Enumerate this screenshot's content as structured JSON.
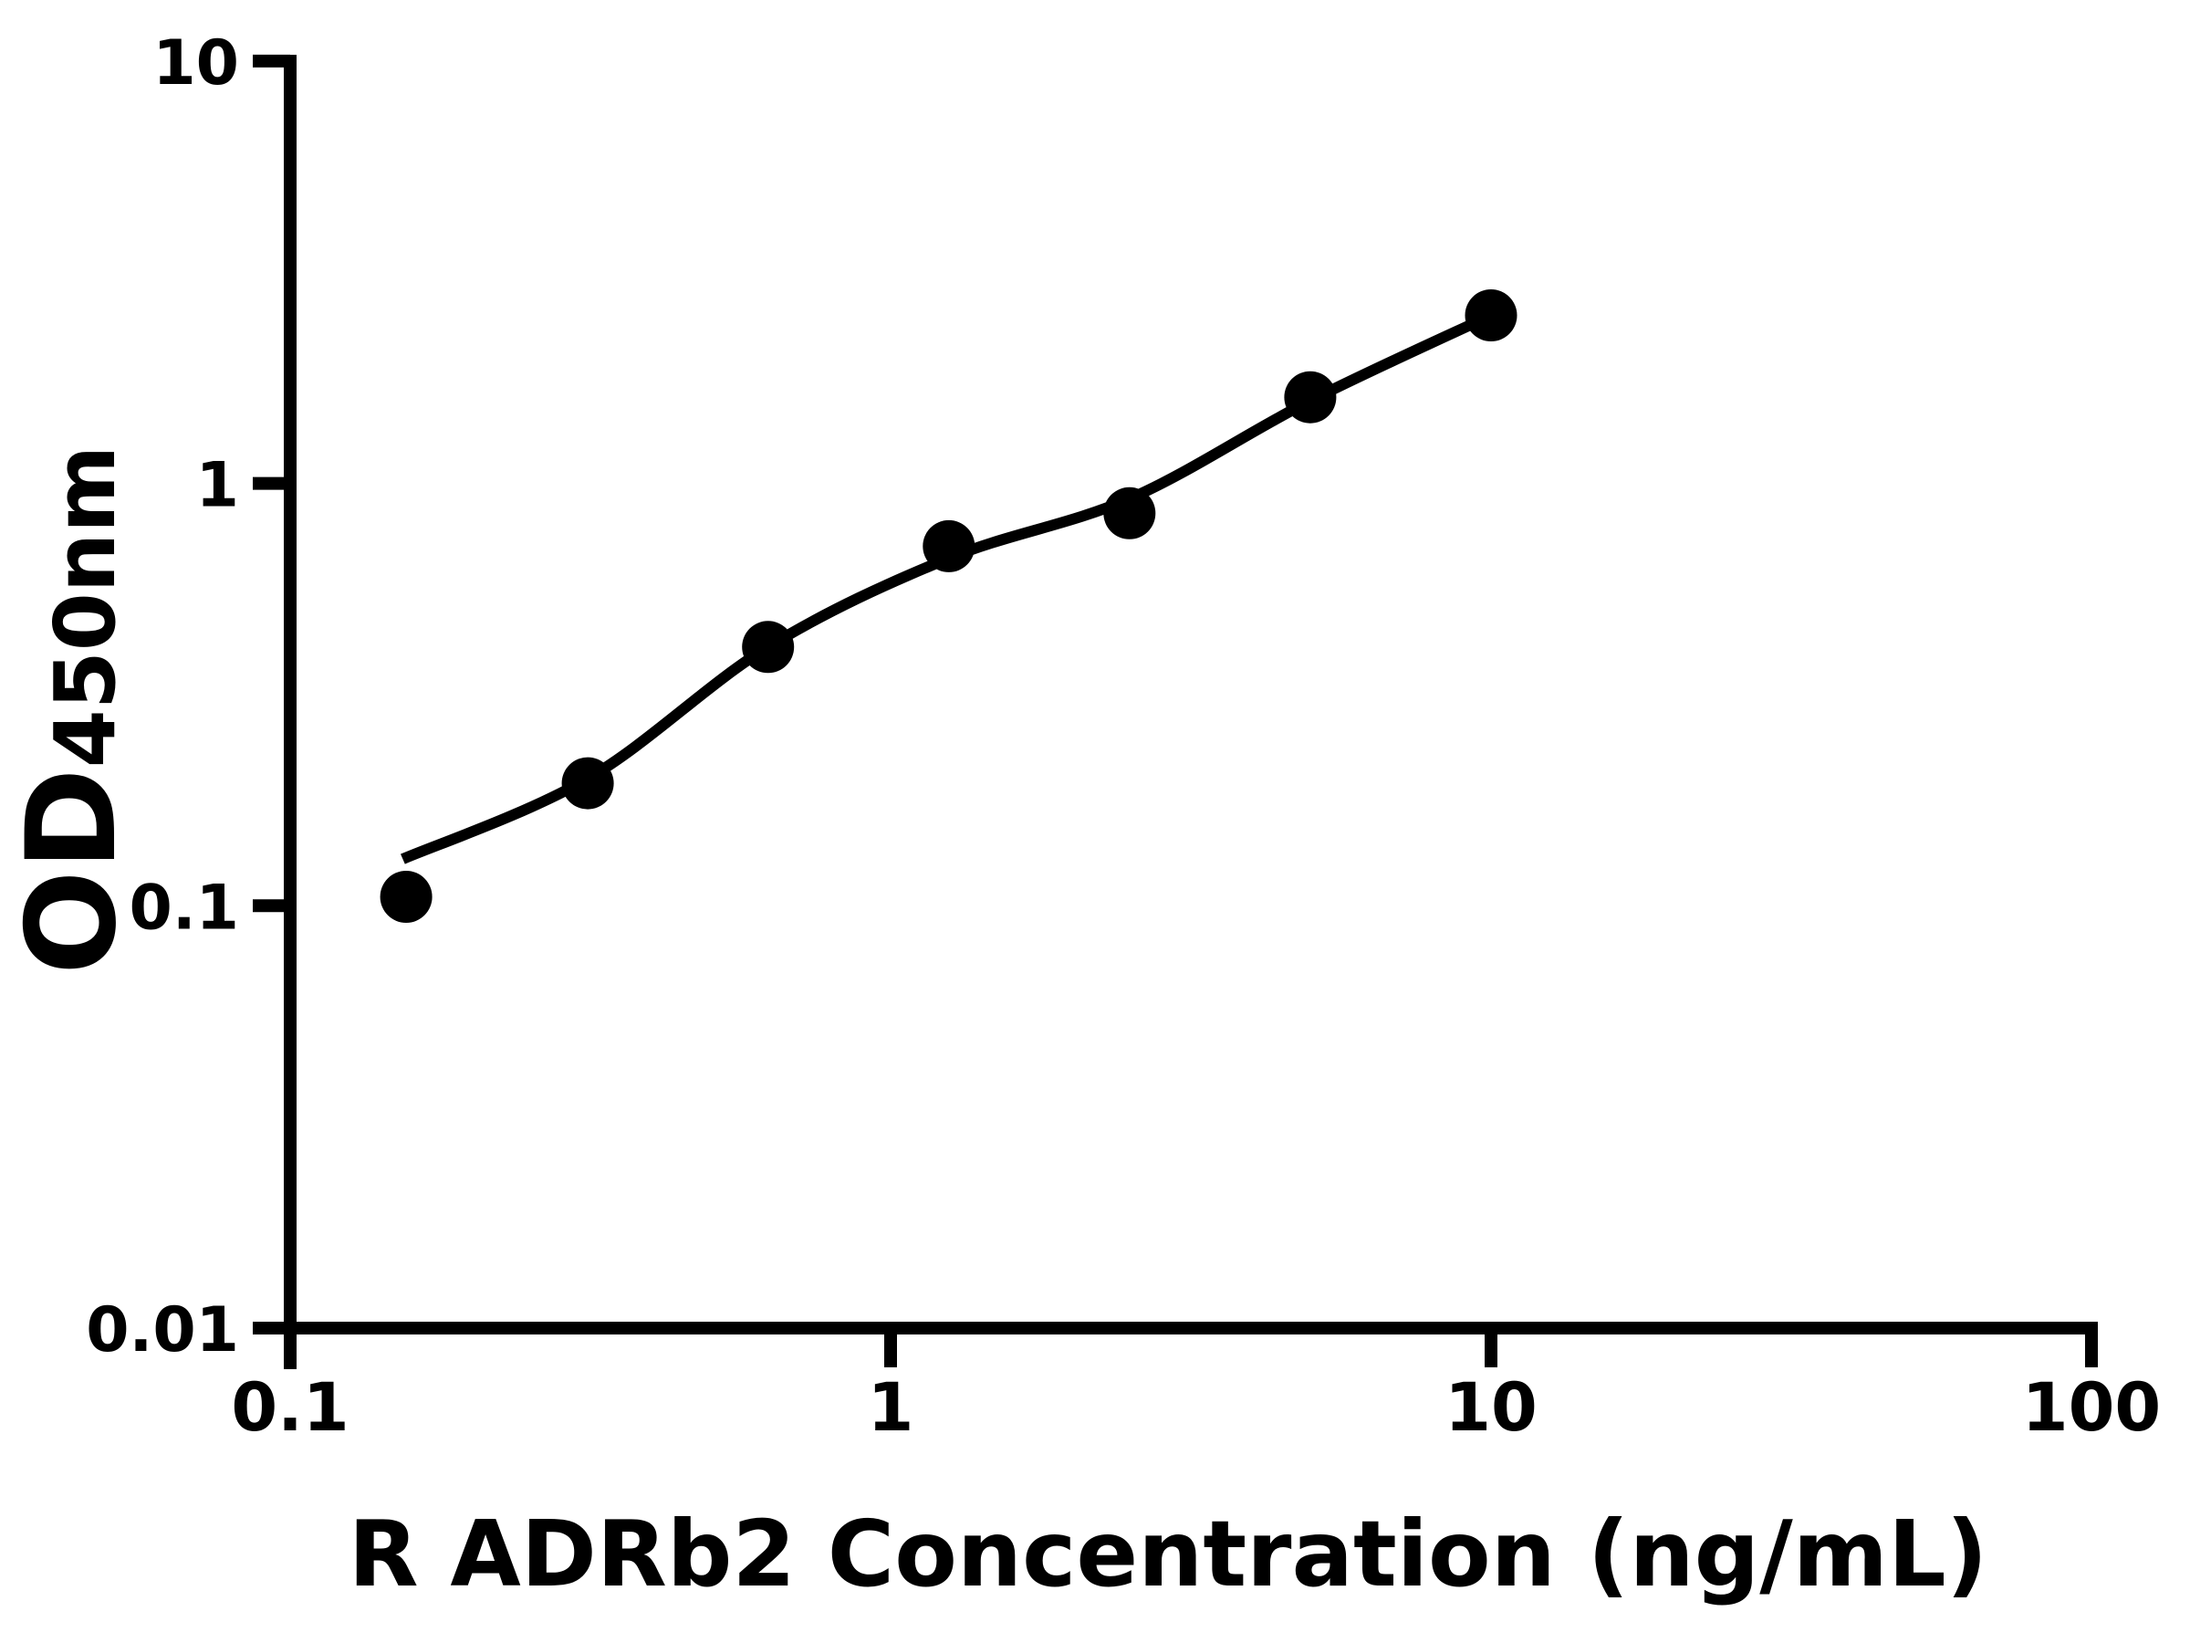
{
  "figure": {
    "background_color": "#ffffff",
    "ink_color": "#000000"
  },
  "chart_data": {
    "type": "scatter",
    "title": "",
    "xlabel": "R ADRb2 Concentration (ng/mL)",
    "ylabel": "OD",
    "ylabel_subscript": "450nm",
    "x_scale": "log",
    "y_scale": "log",
    "xlim": [
      0.1,
      100
    ],
    "ylim": [
      0.01,
      10
    ],
    "grid": false,
    "legend": "none",
    "x_ticks": [
      {
        "value": 0.1,
        "label": "0.1"
      },
      {
        "value": 1,
        "label": "1"
      },
      {
        "value": 10,
        "label": "10"
      },
      {
        "value": 100,
        "label": "100"
      }
    ],
    "y_ticks": [
      {
        "value": 10,
        "label": "10"
      },
      {
        "value": 1,
        "label": "1"
      },
      {
        "value": 0.1,
        "label": "0.1"
      },
      {
        "value": 0.01,
        "label": "0.01"
      }
    ],
    "series": [
      {
        "name": "Fitted standard curve",
        "type": "line",
        "color": "#000000",
        "points": [
          {
            "x": 0.154,
            "y": 0.129
          },
          {
            "x": 0.313,
            "y": 0.2
          },
          {
            "x": 0.625,
            "y": 0.41
          },
          {
            "x": 1.25,
            "y": 0.665
          },
          {
            "x": 2.5,
            "y": 0.92
          },
          {
            "x": 5,
            "y": 1.57
          },
          {
            "x": 10,
            "y": 2.5
          }
        ]
      },
      {
        "name": "Standard data points",
        "type": "scatter",
        "marker": "circle",
        "color": "#000000",
        "points": [
          {
            "x": 0.156,
            "y": 0.105
          },
          {
            "x": 0.313,
            "y": 0.195
          },
          {
            "x": 0.625,
            "y": 0.41
          },
          {
            "x": 1.25,
            "y": 0.71
          },
          {
            "x": 2.5,
            "y": 0.85
          },
          {
            "x": 5,
            "y": 1.6
          },
          {
            "x": 10,
            "y": 2.5
          }
        ]
      }
    ]
  }
}
